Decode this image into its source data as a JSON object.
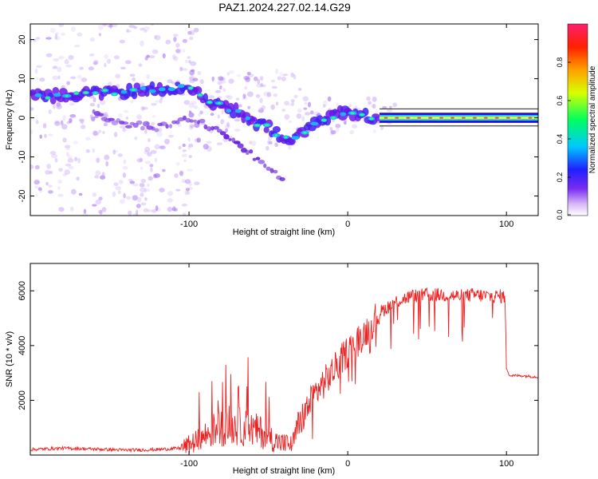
{
  "title": "PAZ1.2024.227.02.14.G29",
  "chart_data": [
    {
      "type": "heatmap",
      "xlabel": "Height of straight line (km)",
      "ylabel": "Frequency (Hz)",
      "xlim": [
        -200,
        120
      ],
      "ylim": [
        -25,
        24
      ],
      "xticks": [
        -100,
        0,
        100
      ],
      "yticks": [
        -20,
        -10,
        0,
        10,
        20
      ],
      "colorbar": {
        "label": "Normalized spectral amplitude",
        "range": [
          0,
          1
        ],
        "ticks": [
          "0.0",
          "0.2",
          "0.4",
          "0.6",
          "0.8"
        ]
      },
      "main_track": [
        {
          "x": -200,
          "y": 5.5
        },
        {
          "x": -180,
          "y": 5.8
        },
        {
          "x": -160,
          "y": 6.3
        },
        {
          "x": -140,
          "y": 6.6
        },
        {
          "x": -120,
          "y": 7.4
        },
        {
          "x": -100,
          "y": 7.8
        },
        {
          "x": -90,
          "y": 4.5
        },
        {
          "x": -80,
          "y": 3.0
        },
        {
          "x": -70,
          "y": 1.5
        },
        {
          "x": -60,
          "y": -1.0
        },
        {
          "x": -50,
          "y": -2.5
        },
        {
          "x": -40,
          "y": -5.5
        },
        {
          "x": -30,
          "y": -4.5
        },
        {
          "x": -20,
          "y": -1.5
        },
        {
          "x": -10,
          "y": 0.5
        },
        {
          "x": 0,
          "y": 1.5
        },
        {
          "x": 10,
          "y": 0.5
        },
        {
          "x": 20,
          "y": 0.0
        },
        {
          "x": 120,
          "y": 0.0
        }
      ],
      "secondary_track": [
        {
          "x": -160,
          "y": 1.0
        },
        {
          "x": -140,
          "y": -1.5
        },
        {
          "x": -120,
          "y": -2.5
        },
        {
          "x": -100,
          "y": 0.0
        },
        {
          "x": -90,
          "y": -1.5
        },
        {
          "x": -80,
          "y": -4.0
        },
        {
          "x": -70,
          "y": -6.0
        },
        {
          "x": -60,
          "y": -9.5
        },
        {
          "x": -50,
          "y": -13.0
        },
        {
          "x": -40,
          "y": -16.0
        }
      ]
    },
    {
      "type": "line",
      "xlabel": "Height of straight line (km)",
      "ylabel": "SNR (10 * v/v)",
      "xlim": [
        -200,
        120
      ],
      "ylim": [
        0,
        7000
      ],
      "xticks": [
        -100,
        0,
        100
      ],
      "yticks": [
        2000,
        4000,
        6000
      ],
      "series": [
        {
          "color": "#ee2222",
          "points": [
            {
              "x": -200,
              "y": 200
            },
            {
              "x": -180,
              "y": 250
            },
            {
              "x": -160,
              "y": 220
            },
            {
              "x": -140,
              "y": 180
            },
            {
              "x": -120,
              "y": 200
            },
            {
              "x": -105,
              "y": 250
            },
            {
              "x": -95,
              "y": 500
            },
            {
              "x": -85,
              "y": 900
            },
            {
              "x": -75,
              "y": 1100
            },
            {
              "x": -65,
              "y": 1000
            },
            {
              "x": -55,
              "y": 850
            },
            {
              "x": -45,
              "y": 500
            },
            {
              "x": -35,
              "y": 350
            },
            {
              "x": -30,
              "y": 1200
            },
            {
              "x": -20,
              "y": 2300
            },
            {
              "x": -10,
              "y": 3000
            },
            {
              "x": 0,
              "y": 3800
            },
            {
              "x": 10,
              "y": 4400
            },
            {
              "x": 20,
              "y": 5200
            },
            {
              "x": 30,
              "y": 5600
            },
            {
              "x": 40,
              "y": 5800
            },
            {
              "x": 50,
              "y": 5850
            },
            {
              "x": 60,
              "y": 5850
            },
            {
              "x": 70,
              "y": 5800
            },
            {
              "x": 80,
              "y": 5850
            },
            {
              "x": 90,
              "y": 5800
            },
            {
              "x": 99,
              "y": 5800
            },
            {
              "x": 100,
              "y": 3200
            },
            {
              "x": 102,
              "y": 2900
            },
            {
              "x": 110,
              "y": 2900
            },
            {
              "x": 120,
              "y": 2850
            }
          ]
        }
      ]
    }
  ]
}
